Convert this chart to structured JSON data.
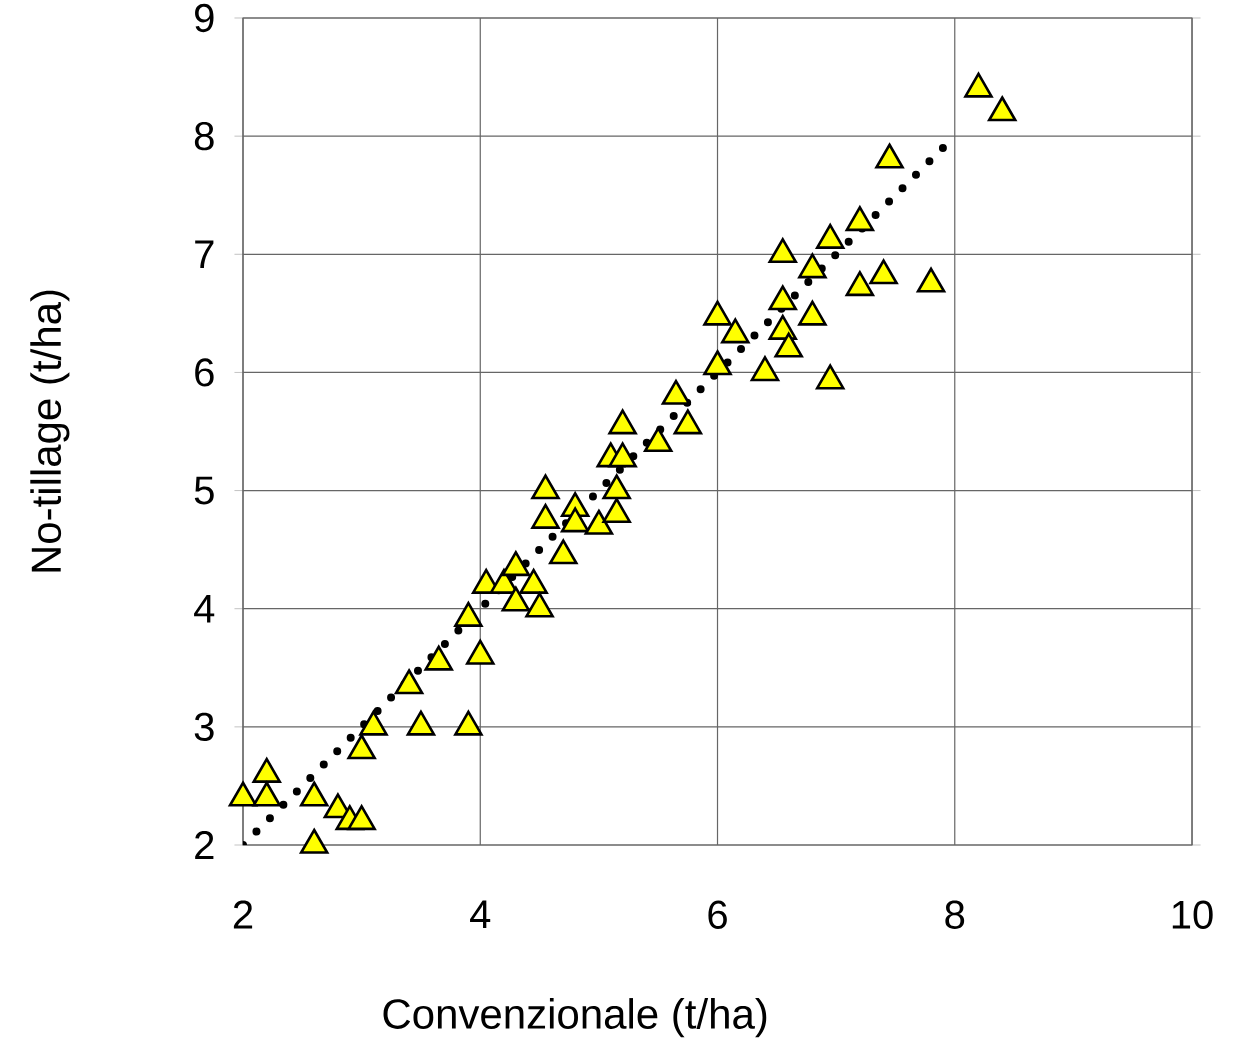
{
  "chart_data": {
    "type": "scatter",
    "xlabel": "Convenzionale (t/ha)",
    "ylabel": "No-tillage (t/ha)",
    "xlim": [
      2,
      10
    ],
    "ylim": [
      2,
      9
    ],
    "xticks": [
      2,
      4,
      6,
      8,
      10
    ],
    "yticks": [
      2,
      3,
      4,
      5,
      6,
      7,
      8,
      9
    ],
    "grid": true,
    "series": [
      {
        "marker": "triangle",
        "color": "#ffff00",
        "x": [
          2.0,
          2.2,
          2.2,
          2.6,
          2.6,
          2.8,
          2.9,
          3.0,
          3.0,
          3.1,
          3.4,
          3.5,
          3.65,
          3.9,
          3.9,
          4.0,
          4.05,
          4.2,
          4.3,
          4.3,
          4.45,
          4.5,
          4.55,
          4.55,
          4.7,
          4.8,
          4.8,
          5.0,
          5.1,
          5.15,
          5.15,
          5.2,
          5.2,
          5.5,
          5.65,
          5.75,
          6.0,
          6.0,
          6.15,
          6.4,
          6.55,
          6.55,
          6.55,
          6.6,
          6.8,
          6.8,
          6.95,
          6.95,
          7.2,
          7.2,
          7.4,
          7.45,
          7.8,
          8.2,
          8.4
        ],
        "values": [
          2.4,
          2.6,
          2.4,
          2.0,
          2.4,
          2.3,
          2.2,
          2.2,
          2.8,
          3.0,
          3.35,
          3.0,
          3.55,
          3.0,
          3.92,
          3.6,
          4.2,
          4.2,
          4.05,
          4.35,
          4.2,
          4.0,
          4.75,
          5.0,
          4.45,
          4.85,
          4.72,
          4.7,
          5.27,
          4.8,
          5.0,
          5.27,
          5.55,
          5.4,
          5.8,
          5.55,
          6.05,
          6.47,
          6.32,
          6.0,
          7.0,
          6.6,
          6.35,
          6.2,
          6.47,
          6.87,
          7.12,
          5.93,
          7.27,
          6.72,
          6.82,
          7.8,
          6.75,
          8.4,
          8.2
        ]
      },
      {
        "type": "line",
        "marker": "none",
        "line_style": "dotted",
        "color": "#000000",
        "x": [
          2.0,
          7.9
        ],
        "values": [
          2.0,
          7.9
        ]
      }
    ]
  }
}
